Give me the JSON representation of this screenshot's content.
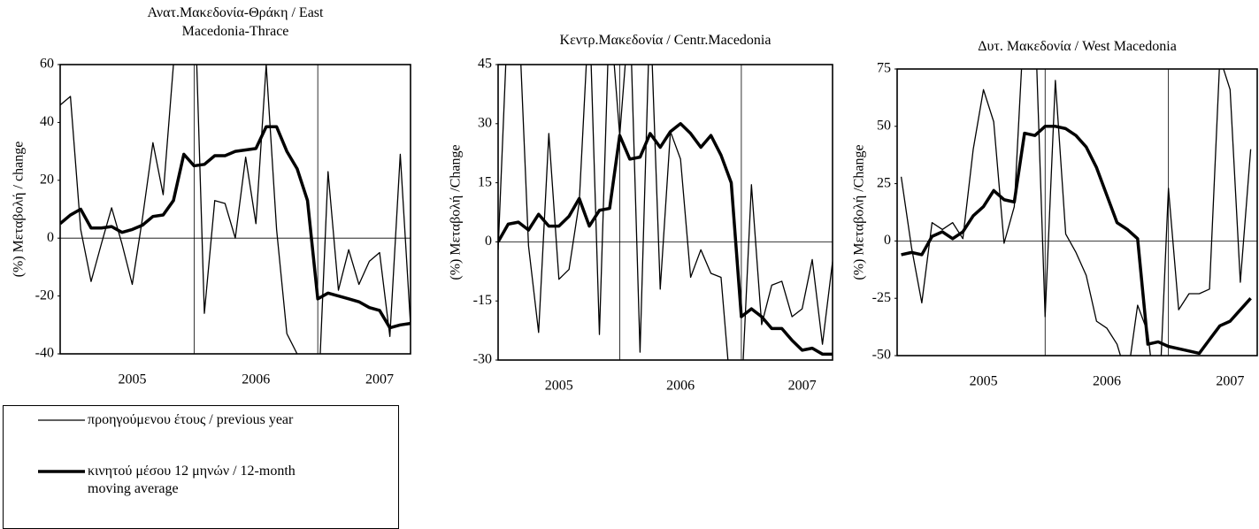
{
  "chart_data": [
    {
      "type": "line",
      "title": "Ανατ.Μακεδονία-Θράκη / East Macedonia-Thrace",
      "ylabel": "(%) Μεταβολή / change",
      "x": [
        2004.917,
        2005.0,
        2005.083,
        2005.167,
        2005.25,
        2005.333,
        2005.417,
        2005.5,
        2005.583,
        2005.667,
        2005.75,
        2005.833,
        2005.917,
        2006.0,
        2006.083,
        2006.167,
        2006.25,
        2006.333,
        2006.417,
        2006.5,
        2006.583,
        2006.667,
        2006.75,
        2006.833,
        2006.917,
        2007.0,
        2007.083,
        2007.167,
        2007.25,
        2007.333,
        2007.417,
        2007.5,
        2007.583,
        2007.667,
        2007.75
      ],
      "series": [
        {
          "name": "προηγούμενου έτους / previous year",
          "color": "#000000",
          "width": 1.3,
          "values": [
            46,
            49,
            3,
            -15,
            -2,
            10.5,
            -2,
            -16,
            7,
            33,
            15,
            60,
            95,
            90,
            -26,
            13,
            12,
            0,
            28,
            5,
            60,
            3,
            -33,
            -40,
            -50,
            -60,
            23,
            -18,
            -4,
            -16,
            -8,
            -5,
            -34,
            29,
            -30
          ]
        },
        {
          "name": "κινητού μέσου 12 μηνών / 12-month moving average",
          "color": "#000000",
          "width": 3.5,
          "values": [
            5,
            8,
            10,
            3.5,
            3.5,
            4,
            2,
            3,
            4.5,
            7.5,
            8,
            13,
            29,
            25,
            25.5,
            28.5,
            28.5,
            30,
            30.5,
            31,
            38.5,
            38.5,
            30,
            24,
            13,
            -21,
            -19,
            -20,
            -21,
            -22,
            -24,
            -25,
            -31,
            -30,
            -29.5
          ]
        }
      ],
      "xlim": [
        2004.917,
        2007.75
      ],
      "xticks": [
        {
          "value": 2005.5,
          "label": "2005"
        },
        {
          "value": 2006.5,
          "label": "2006"
        },
        {
          "value": 2007.5,
          "label": "2007"
        }
      ],
      "xgrid": [
        2006.0,
        2007.0
      ],
      "ylim": [
        -40,
        60
      ],
      "yticks": [
        -40,
        -20,
        0,
        20,
        40,
        60
      ]
    },
    {
      "type": "line",
      "title": "Κεντρ.Μακεδονία / Centr.Macedonia",
      "ylabel": "(%) Μεταβολή  /Change",
      "x": [
        2005.0,
        2005.083,
        2005.167,
        2005.25,
        2005.333,
        2005.417,
        2005.5,
        2005.583,
        2005.667,
        2005.75,
        2005.833,
        2005.917,
        2006.0,
        2006.083,
        2006.167,
        2006.25,
        2006.333,
        2006.417,
        2006.5,
        2006.583,
        2006.667,
        2006.75,
        2006.833,
        2006.917,
        2007.0,
        2007.083,
        2007.167,
        2007.25,
        2007.333,
        2007.417,
        2007.5,
        2007.583,
        2007.667,
        2007.75
      ],
      "series": [
        {
          "color": "#000000",
          "width": 1.3,
          "values": [
            -2,
            60,
            60,
            -1,
            -23,
            27.5,
            -9.5,
            -7,
            10,
            60,
            -23.5,
            60,
            27,
            60,
            -28,
            60,
            -12,
            28,
            21,
            -9,
            -2,
            -8,
            -9,
            -40,
            -40,
            14.5,
            -21,
            -11,
            -10,
            -19,
            -17,
            -4.5,
            -26,
            -5
          ]
        },
        {
          "color": "#000000",
          "width": 3.5,
          "values": [
            0,
            4.5,
            5,
            3,
            7,
            4,
            4,
            6.5,
            11,
            4,
            8,
            8.5,
            27,
            21,
            21.5,
            27.5,
            24,
            28,
            30,
            27.5,
            24,
            27,
            22,
            15,
            -19,
            -17,
            -19,
            -22,
            -22,
            -25,
            -27.5,
            -27,
            -28.5,
            -28.5
          ]
        }
      ],
      "xlim": [
        2005.0,
        2007.75
      ],
      "xticks": [
        {
          "value": 2005.5,
          "label": "2005"
        },
        {
          "value": 2006.5,
          "label": "2006"
        },
        {
          "value": 2007.5,
          "label": "2007"
        }
      ],
      "xgrid": [
        2006.0,
        2007.0
      ],
      "ylim": [
        -30,
        45
      ],
      "yticks": [
        -30,
        -15,
        0,
        15,
        30,
        45
      ]
    },
    {
      "type": "line",
      "title": "Δυτ. Μακεδονία / West Macedonia",
      "ylabel": "(%) Μεταβολή  /Change",
      "x": [
        2004.833,
        2004.917,
        2005.0,
        2005.083,
        2005.167,
        2005.25,
        2005.333,
        2005.417,
        2005.5,
        2005.583,
        2005.667,
        2005.75,
        2005.833,
        2005.917,
        2006.0,
        2006.083,
        2006.167,
        2006.25,
        2006.333,
        2006.417,
        2006.5,
        2006.583,
        2006.667,
        2006.75,
        2006.833,
        2006.917,
        2007.0,
        2007.083,
        2007.167,
        2007.25,
        2007.333,
        2007.417,
        2007.5,
        2007.583,
        2007.667
      ],
      "series": [
        {
          "color": "#000000",
          "width": 1.3,
          "values": [
            28,
            -3,
            -27,
            8,
            5,
            8,
            1,
            40,
            66,
            52,
            -1,
            15,
            100,
            100,
            -33,
            70,
            3,
            -5,
            -15,
            -35,
            -38,
            -45,
            -60,
            -28,
            -40,
            -80,
            23,
            -30,
            -23,
            -23,
            -21,
            80,
            66,
            -18,
            40
          ]
        },
        {
          "color": "#000000",
          "width": 3.5,
          "values": [
            -6,
            -5,
            -6,
            2,
            4,
            1,
            4,
            11,
            15,
            22,
            18,
            17,
            47,
            46,
            50,
            50,
            49,
            46,
            41,
            32,
            20,
            8,
            5,
            1,
            -45,
            -44,
            -46,
            -47,
            -48,
            -49,
            -43,
            -37,
            -35,
            -30,
            -25
          ]
        }
      ],
      "xlim": [
        2004.8,
        2007.72
      ],
      "xticks": [
        {
          "value": 2005.5,
          "label": "2005"
        },
        {
          "value": 2006.5,
          "label": "2006"
        },
        {
          "value": 2007.5,
          "label": "2007"
        }
      ],
      "xgrid": [
        2006.0,
        2007.0
      ],
      "ylim": [
        -50,
        75
      ],
      "yticks": [
        -50,
        -25,
        0,
        25,
        50,
        75
      ]
    }
  ]
}
